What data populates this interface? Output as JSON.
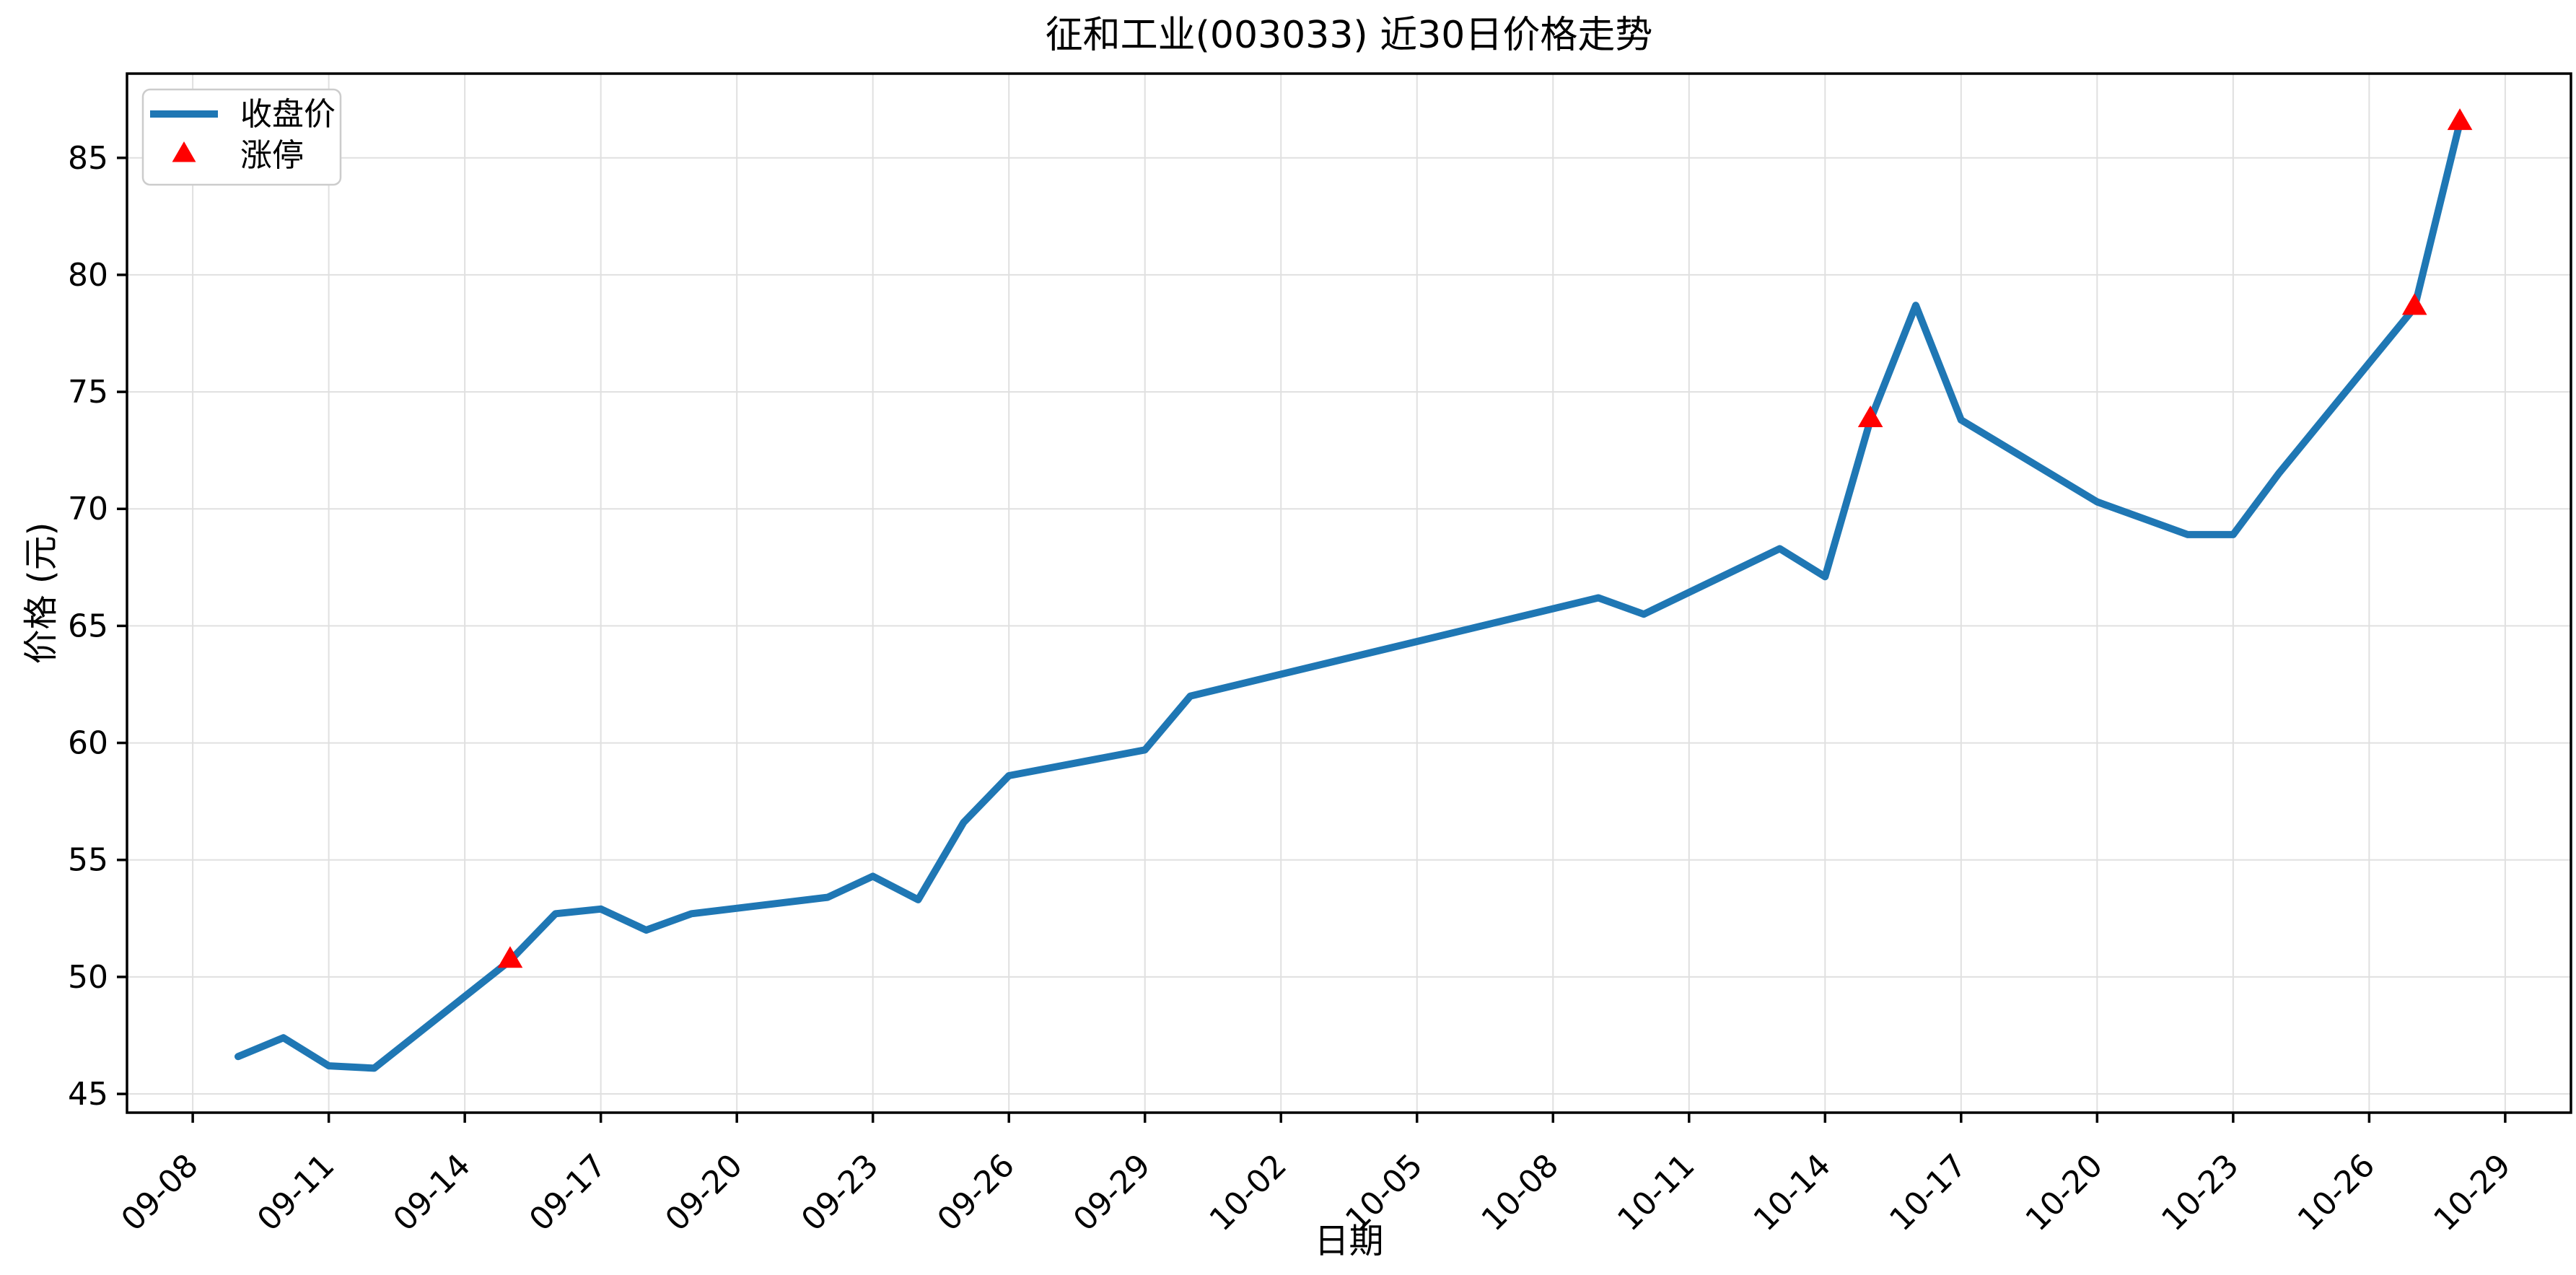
{
  "chart_data": {
    "type": "line",
    "title": "征和工业(003033) 近30日价格走势",
    "xlabel": "日期",
    "ylabel": "价格 (元)",
    "grid": true,
    "legend_position": "upper-left",
    "series": [
      {
        "name": "收盘价",
        "dates": [
          "09-09",
          "09-10",
          "09-11",
          "09-12",
          "09-15",
          "09-16",
          "09-17",
          "09-18",
          "09-19",
          "09-22",
          "09-23",
          "09-24",
          "09-25",
          "09-26",
          "09-29",
          "09-30",
          "10-09",
          "10-10",
          "10-13",
          "10-14",
          "10-15",
          "10-16",
          "10-17",
          "10-20",
          "10-21",
          "10-22",
          "10-23",
          "10-24",
          "10-27",
          "10-28"
        ],
        "values": [
          46.6,
          47.4,
          46.2,
          46.1,
          50.7,
          52.7,
          52.9,
          52.0,
          52.7,
          53.4,
          54.3,
          53.3,
          56.6,
          58.6,
          59.7,
          62.0,
          66.2,
          65.5,
          68.3,
          67.1,
          73.8,
          78.7,
          73.8,
          70.3,
          69.6,
          68.9,
          68.9,
          71.5,
          78.6,
          86.5
        ]
      }
    ],
    "limit_up_markers": {
      "name": "涨停",
      "dates": [
        "09-15",
        "10-15",
        "10-27",
        "10-28"
      ],
      "values": [
        50.7,
        73.8,
        78.6,
        86.5
      ]
    },
    "x_ticks": [
      "09-08",
      "09-11",
      "09-14",
      "09-17",
      "09-20",
      "09-23",
      "09-26",
      "09-29",
      "10-02",
      "10-05",
      "10-08",
      "10-11",
      "10-14",
      "10-17",
      "10-20",
      "10-23",
      "10-26",
      "10-29"
    ],
    "y_ticks": [
      45,
      50,
      55,
      60,
      65,
      70,
      75,
      80,
      85
    ],
    "ylim": [
      44.2,
      88.6
    ],
    "xlim_days_since_sep1": [
      6.55,
      60.45
    ],
    "colors": {
      "line": "#1f77b4",
      "marker": "#ff0000",
      "grid": "#e0e0e0",
      "spine": "#000000",
      "legend_border": "#cccccc",
      "text": "#000000",
      "background": "#ffffff"
    }
  }
}
